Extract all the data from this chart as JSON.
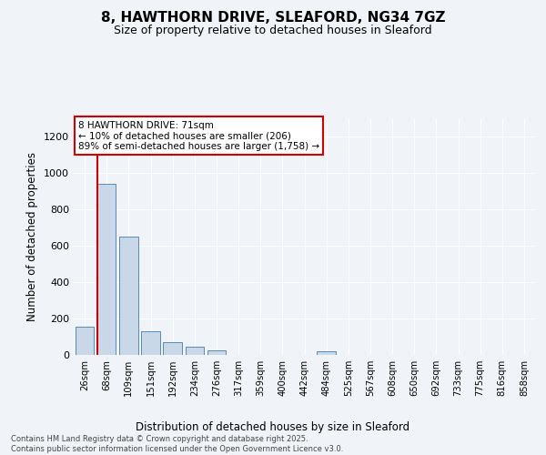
{
  "title": "8, HAWTHORN DRIVE, SLEAFORD, NG34 7GZ",
  "subtitle": "Size of property relative to detached houses in Sleaford",
  "xlabel": "Distribution of detached houses by size in Sleaford",
  "ylabel": "Number of detached properties",
  "footer_line1": "Contains HM Land Registry data © Crown copyright and database right 2025.",
  "footer_line2": "Contains public sector information licensed under the Open Government Licence v3.0.",
  "annotation_line1": "8 HAWTHORN DRIVE: 71sqm",
  "annotation_line2": "← 10% of detached houses are smaller (206)",
  "annotation_line3": "89% of semi-detached houses are larger (1,758) →",
  "bar_color": "#c8d8e8",
  "bar_edge_color": "#5a8ab0",
  "marker_color": "#cc0000",
  "background_color": "#f0f4f8",
  "plot_bg_color": "#f0f4f8",
  "categories": [
    "26sqm",
    "68sqm",
    "109sqm",
    "151sqm",
    "192sqm",
    "234sqm",
    "276sqm",
    "317sqm",
    "359sqm",
    "400sqm",
    "442sqm",
    "484sqm",
    "525sqm",
    "567sqm",
    "608sqm",
    "650sqm",
    "692sqm",
    "733sqm",
    "775sqm",
    "816sqm",
    "858sqm"
  ],
  "values": [
    155,
    940,
    650,
    130,
    70,
    45,
    25,
    0,
    0,
    0,
    0,
    20,
    0,
    0,
    0,
    0,
    0,
    0,
    0,
    0,
    0
  ],
  "ylim": [
    0,
    1300
  ],
  "yticks": [
    0,
    200,
    400,
    600,
    800,
    1000,
    1200
  ]
}
